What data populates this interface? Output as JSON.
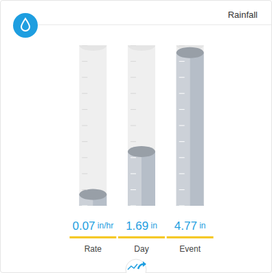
{
  "chart_data": {
    "type": "bar",
    "title": "Rainfall",
    "categories": [
      "Rate",
      "Day",
      "Event"
    ],
    "series": [
      {
        "values": [
          0.07,
          null,
          null
        ],
        "value_labels": [
          "0.07 in/hr",
          null,
          null
        ],
        "axis": "y2",
        "color": "#b6bec8"
      },
      {
        "values": [
          null,
          1.69,
          4.77
        ],
        "value_labels": [
          null,
          "1.69 in",
          "4.77 in"
        ],
        "color": "#b6bec8"
      }
    ],
    "ylim": [
      0,
      5
    ],
    "yticks": [
      0,
      0.5,
      1,
      1.5,
      2,
      2.5,
      3,
      3.5,
      4,
      4.5,
      5
    ],
    "y2lim": [
      0,
      1
    ],
    "y2ticks": [
      0,
      0.1,
      0.2,
      0.3,
      0.4,
      0.5,
      0.6,
      0.7,
      0.8,
      0.9,
      1
    ],
    "data_labels": true,
    "tick_labels": false,
    "grid": false
  }
}
